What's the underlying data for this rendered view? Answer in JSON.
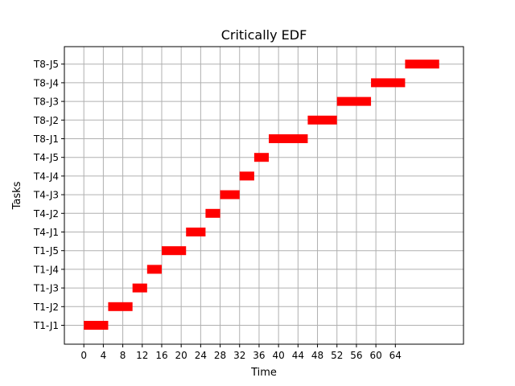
{
  "chart_data": {
    "type": "gantt",
    "title": "Critically EDF",
    "xlabel": "Time",
    "ylabel": "Tasks",
    "xlim": [
      -4,
      78
    ],
    "xticks": [
      0,
      4,
      8,
      12,
      16,
      20,
      24,
      28,
      32,
      36,
      40,
      44,
      48,
      52,
      56,
      60,
      64
    ],
    "grid": true,
    "bar_color": "#ff0000",
    "categories": [
      "T1-J1",
      "T1-J2",
      "T1-J3",
      "T1-J4",
      "T1-J5",
      "T4-J1",
      "T4-J2",
      "T4-J3",
      "T4-J4",
      "T4-J5",
      "T8-J1",
      "T8-J2",
      "T8-J3",
      "T8-J4",
      "T8-J5"
    ],
    "bars": [
      {
        "task": "T1-J1",
        "start": 0,
        "end": 5
      },
      {
        "task": "T1-J2",
        "start": 5,
        "end": 10
      },
      {
        "task": "T1-J3",
        "start": 10,
        "end": 13
      },
      {
        "task": "T1-J4",
        "start": 13,
        "end": 16
      },
      {
        "task": "T1-J5",
        "start": 16,
        "end": 21
      },
      {
        "task": "T4-J1",
        "start": 21,
        "end": 25
      },
      {
        "task": "T4-J2",
        "start": 25,
        "end": 28
      },
      {
        "task": "T4-J3",
        "start": 28,
        "end": 32
      },
      {
        "task": "T4-J4",
        "start": 32,
        "end": 35
      },
      {
        "task": "T4-J5",
        "start": 35,
        "end": 38
      },
      {
        "task": "T8-J1",
        "start": 38,
        "end": 46
      },
      {
        "task": "T8-J2",
        "start": 46,
        "end": 52
      },
      {
        "task": "T8-J3",
        "start": 52,
        "end": 59
      },
      {
        "task": "T8-J4",
        "start": 59,
        "end": 66
      },
      {
        "task": "T8-J5",
        "start": 66,
        "end": 73
      }
    ]
  }
}
